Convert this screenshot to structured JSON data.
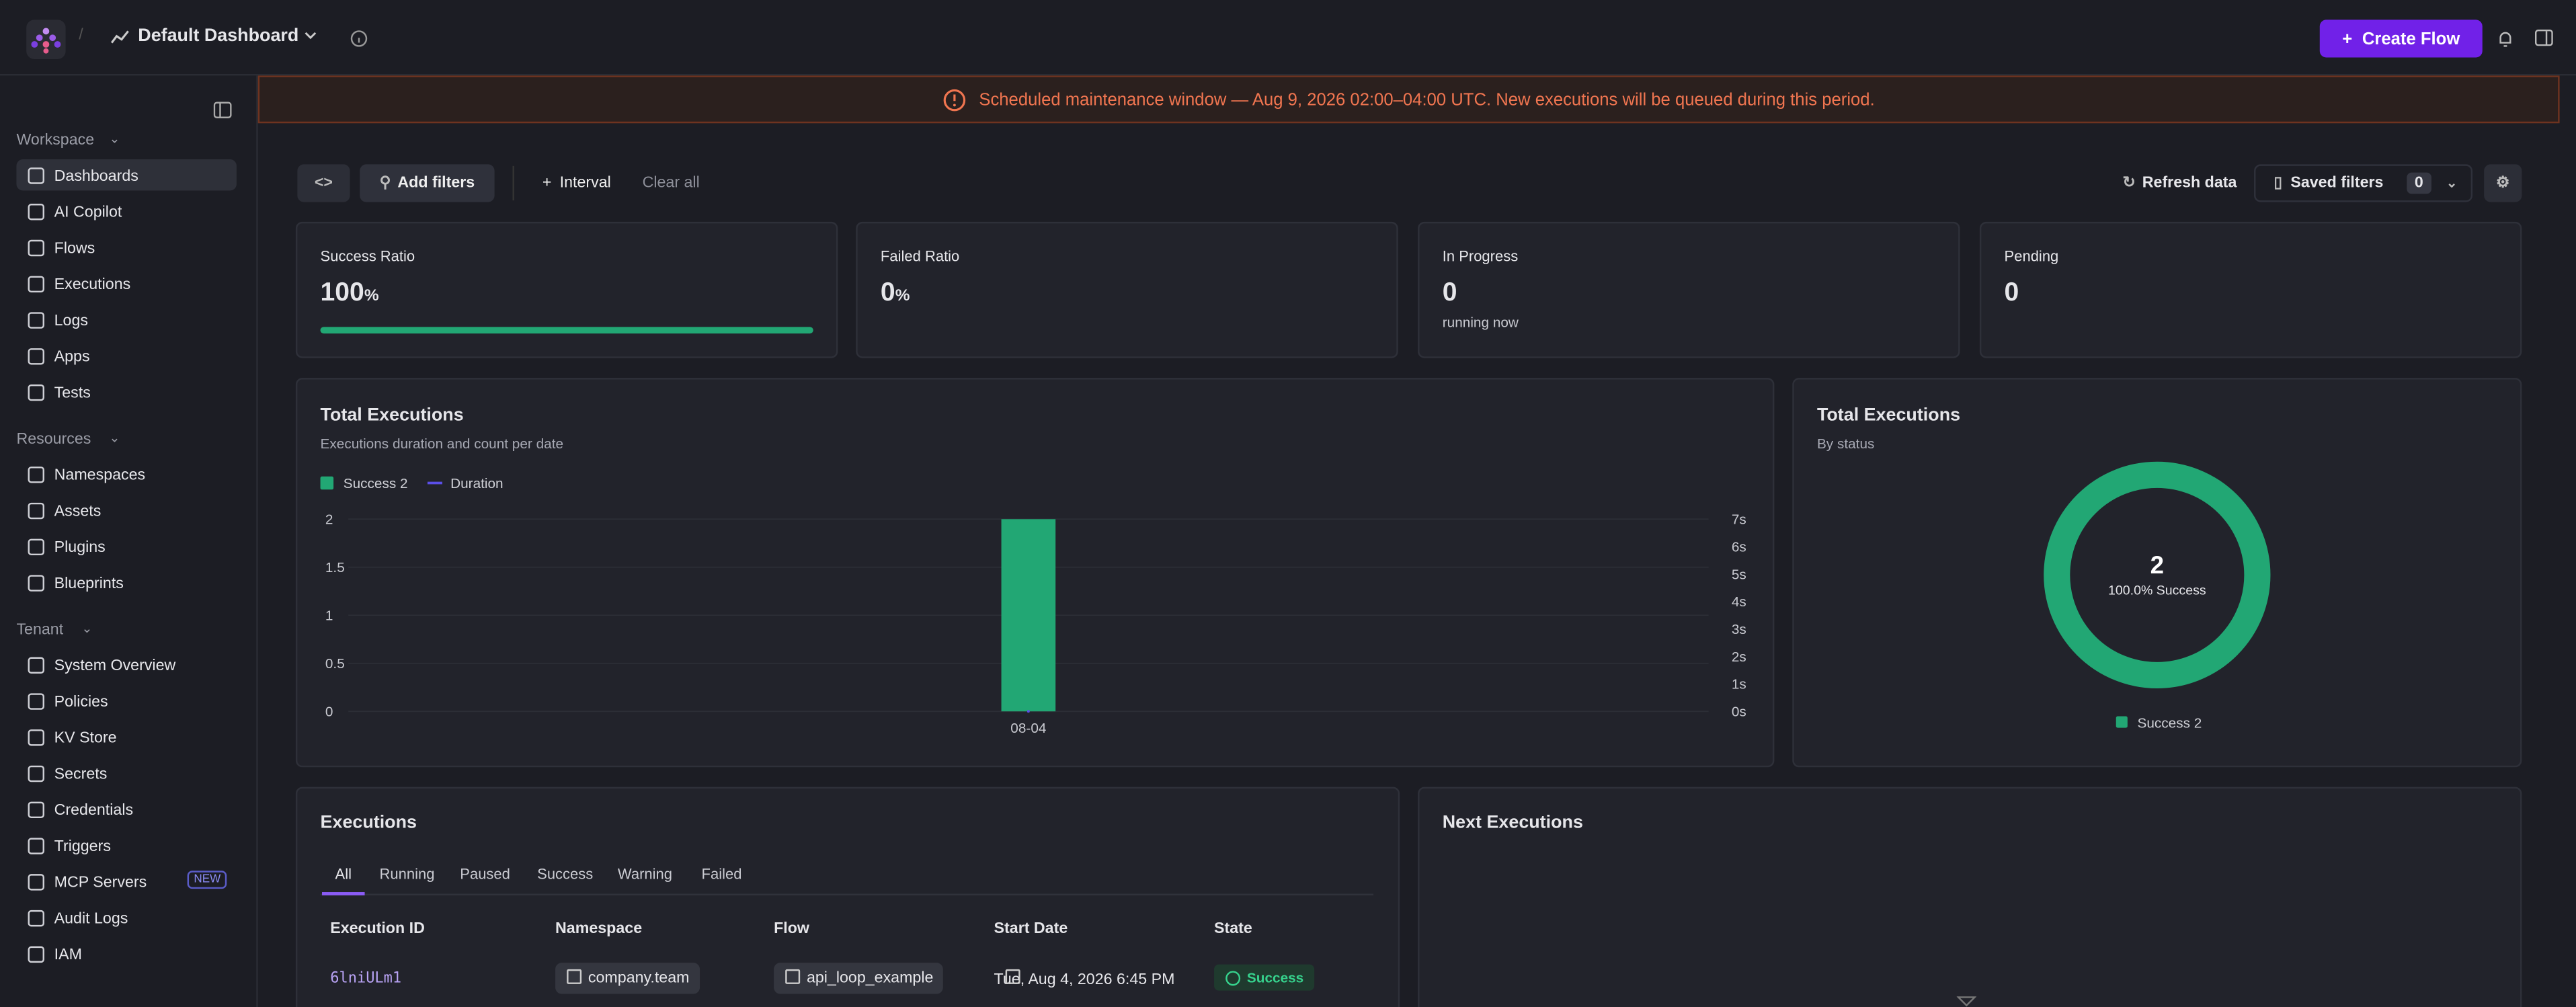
{
  "header": {
    "title": "Default Dashboard",
    "create_button": "Create Flow"
  },
  "sidebar": {
    "sections": [
      {
        "label": "Workspace",
        "items": [
          "Dashboards",
          "AI Copilot",
          "Flows",
          "Executions",
          "Logs",
          "Apps",
          "Tests"
        ]
      },
      {
        "label": "Resources",
        "items": [
          "Namespaces",
          "Assets",
          "Plugins",
          "Blueprints"
        ]
      },
      {
        "label": "Tenant",
        "items": [
          "System Overview",
          "Policies",
          "KV Store",
          "Secrets",
          "Credentials",
          "Triggers",
          "MCP Servers",
          "Audit Logs",
          "IAM"
        ]
      }
    ],
    "new_badge": "NEW"
  },
  "banner": "Scheduled maintenance window — Aug 9, 2026 02:00–04:00 UTC. New executions will be queued during this period.",
  "toolbar": {
    "add_filters": "Add filters",
    "interval": "Interval",
    "clear_all": "Clear all",
    "refresh": "Refresh data",
    "saved_filters": "Saved filters",
    "saved_count": "0"
  },
  "kpis": [
    {
      "label": "Success Ratio",
      "value": 100,
      "unit": "%"
    },
    {
      "label": "Failed Ratio",
      "value": 0,
      "unit": "%"
    },
    {
      "label": "In Progress",
      "value": 0,
      "note": "running now"
    },
    {
      "label": "Pending",
      "value": 0
    }
  ],
  "chart_data": [
    {
      "type": "bar",
      "title": "Total Executions",
      "subtitle": "Executions duration and count per date",
      "categories": [
        "08-04"
      ],
      "series": [
        {
          "name": "Success 2",
          "color": "#22a774",
          "values": [
            2
          ]
        },
        {
          "name": "Duration",
          "color": "#5b4fe9",
          "values": [
            0
          ],
          "axis": "y2"
        }
      ],
      "ylim": [
        0,
        2
      ],
      "yticks": [
        0,
        0.5,
        1,
        1.5,
        2
      ],
      "y2lim": [
        0,
        7
      ],
      "y2ticks": [
        {
          "value": 0,
          "label": "0s"
        },
        {
          "value": 1,
          "label": "1s"
        },
        {
          "value": 2,
          "label": "2s"
        },
        {
          "value": 3,
          "label": "3s"
        },
        {
          "value": 4,
          "label": "4s"
        },
        {
          "value": 5,
          "label": "5s"
        },
        {
          "value": 6,
          "label": "6s"
        },
        {
          "value": 7,
          "label": "7s"
        }
      ],
      "grid": true
    },
    {
      "type": "donut",
      "title": "Total Executions",
      "subtitle": "By status",
      "categories": [
        "Success 2"
      ],
      "values": [
        2
      ],
      "colors": [
        "#22a774"
      ],
      "total": 2,
      "center_label": "100.0% Success"
    }
  ],
  "executions": {
    "title": "Executions",
    "tabs": [
      "All",
      "Running",
      "Paused",
      "Success",
      "Warning",
      "Failed"
    ],
    "columns": [
      "Execution ID",
      "Namespace",
      "Flow",
      "Start Date",
      "State"
    ],
    "rows": [
      [
        "6lniULm1",
        "company.team",
        "api_loop_example",
        "Tue, Aug 4, 2026 6:45 PM",
        "Success"
      ]
    ]
  },
  "next_executions": {
    "title": "Next Executions"
  }
}
